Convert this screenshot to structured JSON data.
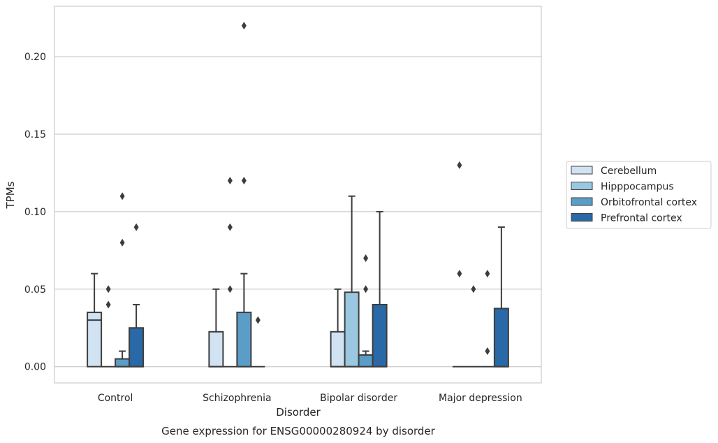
{
  "chart_data": {
    "type": "box",
    "title": "",
    "caption": "Gene expression for ENSG00000280924 by disorder",
    "xlabel": "Disorder",
    "ylabel": "TPMs",
    "ylim": [
      -0.0105,
      0.2325
    ],
    "yticks": [
      0.0,
      0.05,
      0.1,
      0.15,
      0.2
    ],
    "ytick_labels": [
      "0.00",
      "0.05",
      "0.10",
      "0.15",
      "0.20"
    ],
    "grid": "horizontal",
    "legend_position": "right",
    "categories": [
      "Control",
      "Schizophrenia",
      "Bipolar disorder",
      "Major depression"
    ],
    "series": [
      {
        "name": "Cerebellum",
        "color": "#d1e2f2",
        "boxes": [
          {
            "min": 0.0,
            "q1": 0.0,
            "median": 0.03,
            "q3": 0.035,
            "max": 0.06,
            "outliers": []
          },
          {
            "min": 0.0,
            "q1": 0.0,
            "median": 0.0,
            "q3": 0.0225,
            "max": 0.05,
            "outliers": []
          },
          {
            "min": 0.0,
            "q1": 0.0,
            "median": 0.0,
            "q3": 0.0225,
            "max": 0.05,
            "outliers": []
          },
          {
            "min": 0.0,
            "q1": 0.0,
            "median": 0.0,
            "q3": 0.0,
            "max": 0.0,
            "outliers": [
              0.13,
              0.06
            ]
          }
        ]
      },
      {
        "name": "Hipppocampus",
        "color": "#9ac8e0",
        "boxes": [
          {
            "min": 0.0,
            "q1": 0.0,
            "median": 0.0,
            "q3": 0.0,
            "max": 0.0,
            "outliers": [
              0.05,
              0.04
            ]
          },
          {
            "min": 0.0,
            "q1": 0.0,
            "median": 0.0,
            "q3": 0.0,
            "max": 0.0,
            "outliers": [
              0.12,
              0.09,
              0.05
            ]
          },
          {
            "min": 0.0,
            "q1": 0.0,
            "median": 0.0,
            "q3": 0.048,
            "max": 0.11,
            "outliers": []
          },
          {
            "min": 0.0,
            "q1": 0.0,
            "median": 0.0,
            "q3": 0.0,
            "max": 0.0,
            "outliers": [
              0.05
            ]
          }
        ]
      },
      {
        "name": "Orbitofrontal cortex",
        "color": "#5a9ec8",
        "boxes": [
          {
            "min": 0.0,
            "q1": 0.0,
            "median": 0.0,
            "q3": 0.005,
            "max": 0.01,
            "outliers": [
              0.11,
              0.08
            ]
          },
          {
            "min": 0.0,
            "q1": 0.0,
            "median": 0.0,
            "q3": 0.035,
            "max": 0.06,
            "outliers": [
              0.22,
              0.12
            ]
          },
          {
            "min": 0.0,
            "q1": 0.0,
            "median": 0.0,
            "q3": 0.0075,
            "max": 0.01,
            "outliers": [
              0.07,
              0.05
            ]
          },
          {
            "min": 0.0,
            "q1": 0.0,
            "median": 0.0,
            "q3": 0.0,
            "max": 0.0,
            "outliers": [
              0.06,
              0.01
            ]
          }
        ]
      },
      {
        "name": "Prefrontal cortex",
        "color": "#2a69a7",
        "boxes": [
          {
            "min": 0.0,
            "q1": 0.0,
            "median": 0.0,
            "q3": 0.025,
            "max": 0.04,
            "outliers": [
              0.09
            ]
          },
          {
            "min": 0.0,
            "q1": 0.0,
            "median": 0.0,
            "q3": 0.0,
            "max": 0.0,
            "outliers": [
              0.03
            ]
          },
          {
            "min": 0.0,
            "q1": 0.0,
            "median": 0.0,
            "q3": 0.04,
            "max": 0.1,
            "outliers": []
          },
          {
            "min": 0.0,
            "q1": 0.0,
            "median": 0.0,
            "q3": 0.0375,
            "max": 0.09,
            "outliers": []
          }
        ]
      }
    ]
  }
}
